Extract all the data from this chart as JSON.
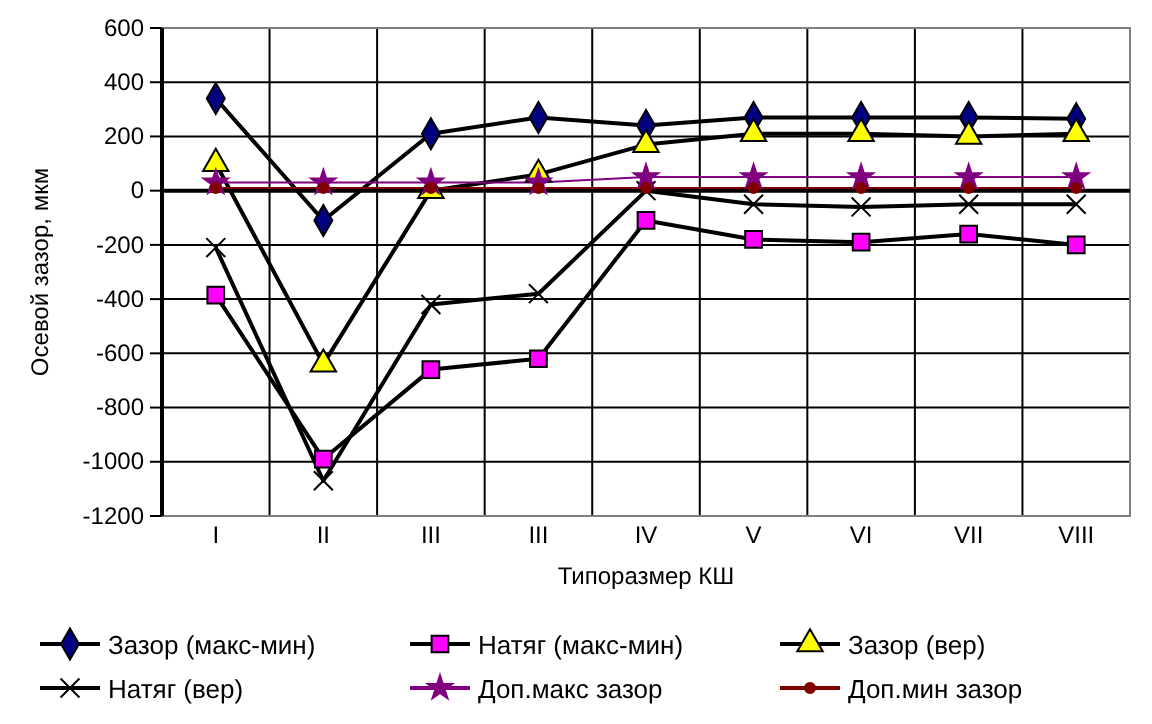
{
  "chart_data": {
    "type": "line",
    "xlabel": "Типоразмер КШ",
    "ylabel": "Осевой зазор, мкм",
    "categories": [
      "I",
      "II",
      "III",
      "III",
      "IV",
      "V",
      "VI",
      "VII",
      "VIII"
    ],
    "ylim": [
      -1200,
      600
    ],
    "yticks": [
      -1200,
      -1000,
      -800,
      -600,
      -400,
      -200,
      0,
      200,
      400,
      600
    ],
    "grid": true,
    "legend": "bottom",
    "series": [
      {
        "name": "Зазор (макс-мин)",
        "color": "#000080",
        "marker": "diamond",
        "values": [
          340,
          -110,
          210,
          270,
          240,
          270,
          270,
          270,
          265
        ]
      },
      {
        "name": "Натяг (макс-мин)",
        "color": "#ff00ff",
        "marker": "square",
        "values": [
          -385,
          -990,
          -660,
          -620,
          -110,
          -180,
          -190,
          -160,
          -200
        ]
      },
      {
        "name": "Зазор (вер)",
        "color": "#ffff00",
        "marker": "triangle",
        "values": [
          100,
          -640,
          0,
          60,
          170,
          210,
          210,
          200,
          210
        ]
      },
      {
        "name": "Натяг (вер)",
        "color": "#000000",
        "marker": "cross",
        "values": [
          -210,
          -1070,
          -420,
          -380,
          0,
          -50,
          -60,
          -50,
          -50
        ]
      },
      {
        "name": "Доп.макс зазор",
        "color": "#800080",
        "marker": "star",
        "values": [
          30,
          30,
          30,
          30,
          50,
          50,
          50,
          50,
          50
        ]
      },
      {
        "name": "Доп.мин зазор",
        "color": "#800000",
        "marker": "circle",
        "values": [
          10,
          10,
          10,
          10,
          10,
          10,
          10,
          10,
          10
        ]
      }
    ]
  }
}
